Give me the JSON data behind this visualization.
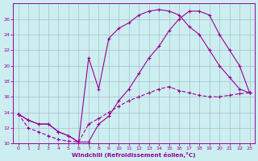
{
  "bg_color": "#cceef0",
  "line_color": "#990099",
  "grid_color": "#aabbcc",
  "xlabel": "Windchill (Refroidissement éolien,°C)",
  "xlim": [
    0,
    23
  ],
  "ylim": [
    10,
    27
  ],
  "xticks": [
    0,
    1,
    2,
    3,
    4,
    5,
    6,
    7,
    8,
    9,
    10,
    11,
    12,
    13,
    14,
    15,
    16,
    17,
    18,
    19,
    20,
    21,
    22,
    23
  ],
  "yticks": [
    10,
    12,
    14,
    16,
    18,
    20,
    22,
    24,
    26
  ],
  "line1_x": [
    0,
    1,
    2,
    3,
    4,
    5,
    6,
    7,
    8,
    9,
    10,
    11,
    12,
    13,
    14,
    15,
    16,
    17,
    18,
    19,
    20,
    21,
    22,
    23
  ],
  "line1_y": [
    13.8,
    13.0,
    12.5,
    12.5,
    11.5,
    11.0,
    10.2,
    10.2,
    12.5,
    13.5,
    15.5,
    17.0,
    19.0,
    21.0,
    22.5,
    24.5,
    26.0,
    27.0,
    27.0,
    26.5,
    24.0,
    22.0,
    20.0,
    16.5
  ],
  "line2_x": [
    0,
    1,
    2,
    3,
    4,
    5,
    6,
    7,
    8,
    9,
    10,
    11,
    12,
    13,
    14,
    15,
    16,
    17,
    18,
    19,
    20,
    21,
    22,
    23
  ],
  "line2_y": [
    13.8,
    13.0,
    12.5,
    12.5,
    11.5,
    11.0,
    10.2,
    21.0,
    17.0,
    23.5,
    24.8,
    25.5,
    26.5,
    27.0,
    27.2,
    27.0,
    26.5,
    25.0,
    24.0,
    22.0,
    20.0,
    18.5,
    17.0,
    16.5
  ],
  "line3_x": [
    0,
    1,
    2,
    3,
    4,
    5,
    6,
    7,
    8,
    9,
    10,
    11,
    12,
    13,
    14,
    15,
    16,
    17,
    18,
    19,
    20,
    21,
    22,
    23
  ],
  "line3_y": [
    13.8,
    12.0,
    11.5,
    11.0,
    10.5,
    10.3,
    10.2,
    12.5,
    13.2,
    14.0,
    14.8,
    15.5,
    16.0,
    16.5,
    17.0,
    17.3,
    16.8,
    16.5,
    16.2,
    16.0,
    16.0,
    16.2,
    16.4,
    16.5
  ]
}
